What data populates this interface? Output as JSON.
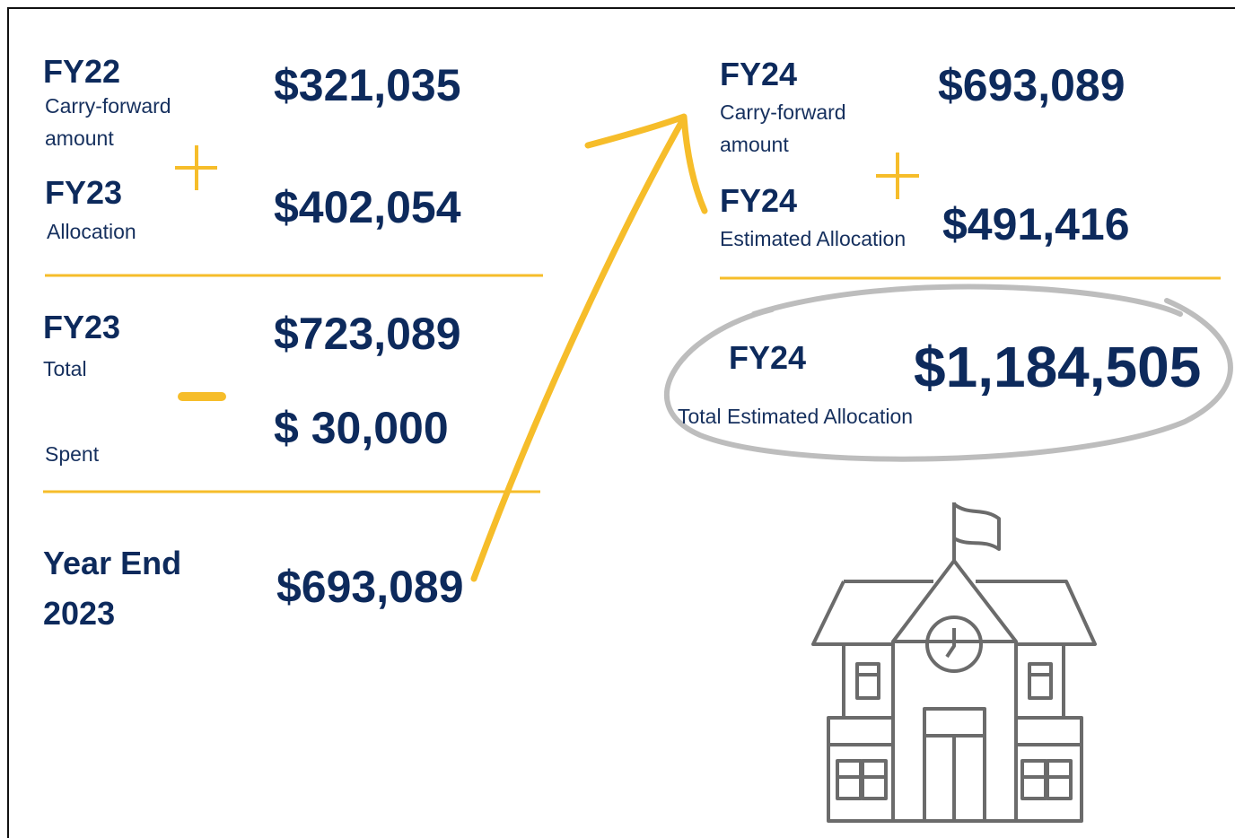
{
  "left": {
    "items": [
      {
        "title": "FY22",
        "note": "Carry-forward amount",
        "amount": "$321,035"
      },
      {
        "title": "FY23",
        "note": "Allocation",
        "amount": "$402,054"
      },
      {
        "title": "FY23",
        "note": "Total",
        "amount": "$723,089"
      },
      {
        "note": "Spent",
        "amount": "$ 30,000"
      },
      {
        "title": "Year End 2023",
        "amount": "$693,089"
      }
    ]
  },
  "right": {
    "items": [
      {
        "title": "FY24",
        "note": "Carry-forward amount",
        "amount": "$693,089"
      },
      {
        "title": "FY24",
        "note": "Estimated Allocation",
        "amount": "$491,416"
      },
      {
        "title": "FY24",
        "note": "Total Estimated Allocation",
        "amount": "$1,184,505"
      }
    ]
  }
}
